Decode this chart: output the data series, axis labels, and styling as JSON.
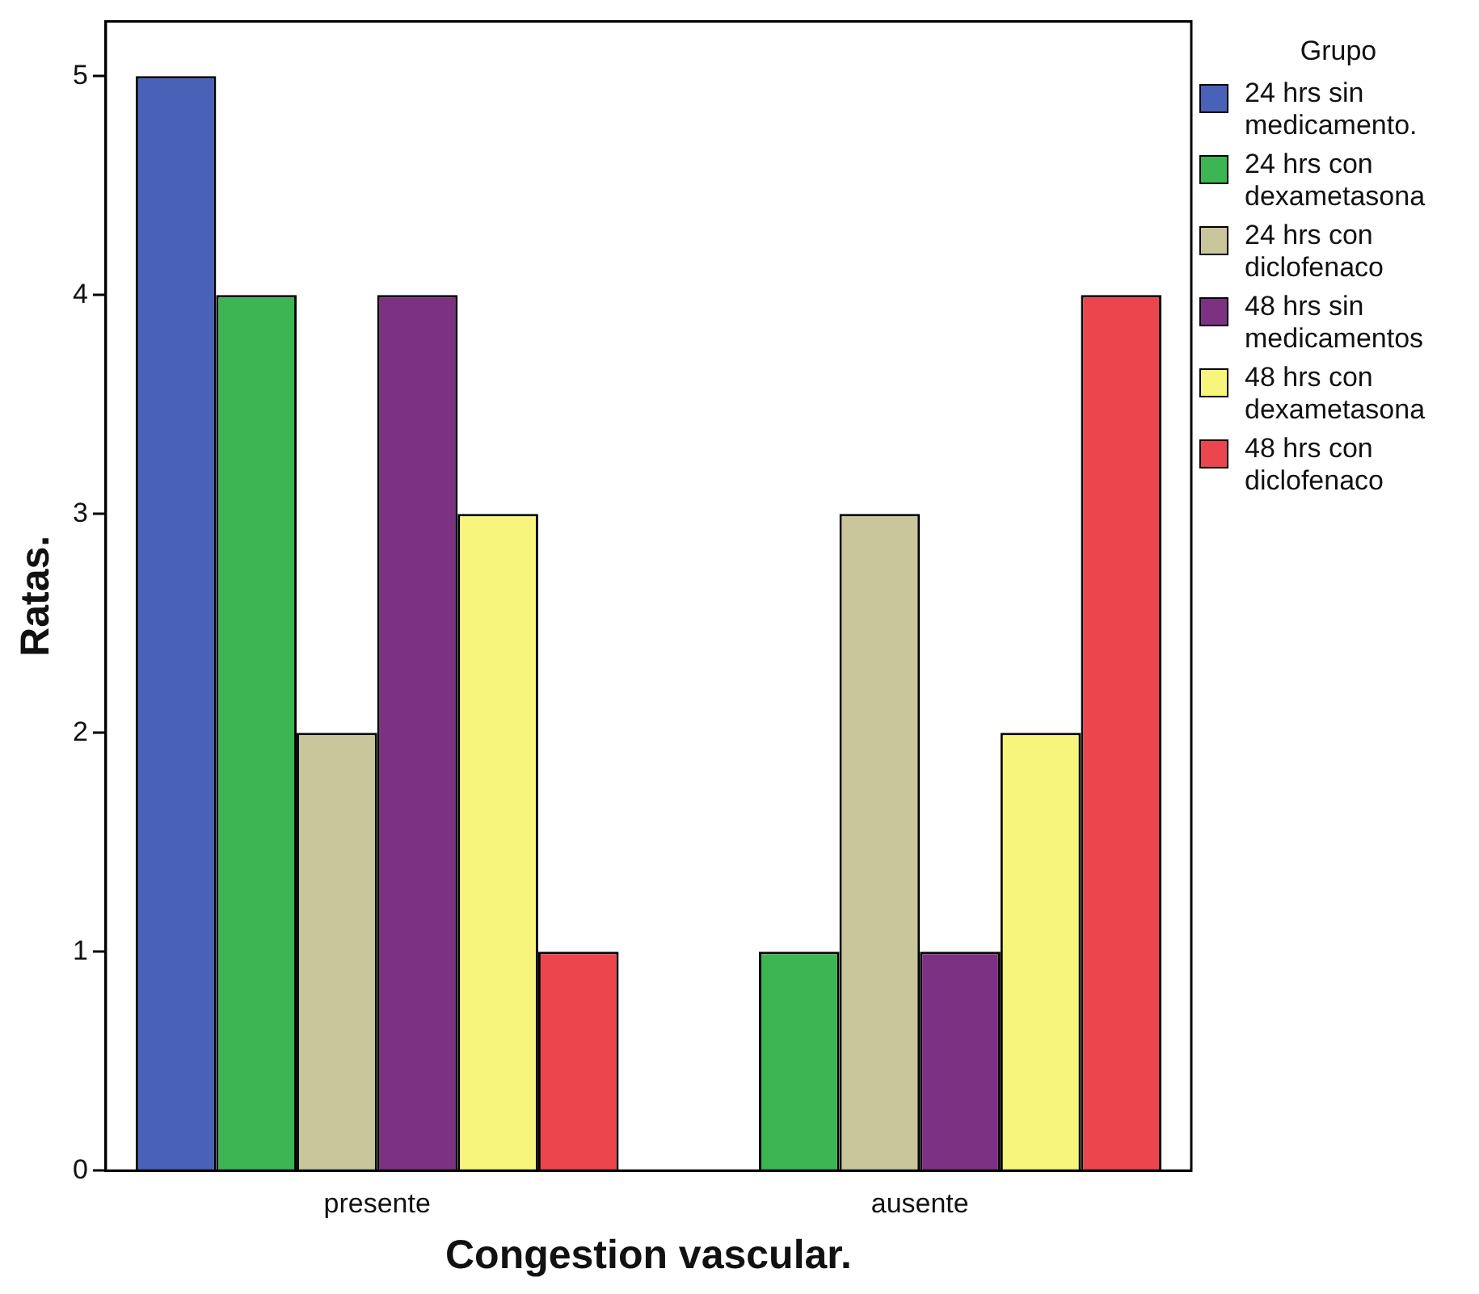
{
  "chart_data": {
    "type": "bar",
    "xlabel": "Congestion vascular.",
    "ylabel": "Ratas.",
    "legend_title": "Grupo",
    "legend": "top right",
    "grid": false,
    "categories": [
      "presente",
      "ausente"
    ],
    "ylim": [
      0,
      5.25
    ],
    "yticks": [
      0,
      1,
      2,
      3,
      4,
      5
    ],
    "series": [
      {
        "name": "24 hrs sin medicamento.",
        "color": "#4a61b8",
        "values": [
          5,
          0
        ]
      },
      {
        "name": "24 hrs con dexametasona",
        "color": "#3cb553",
        "values": [
          4,
          1
        ]
      },
      {
        "name": "24 hrs con diclofenaco",
        "color": "#c9c69c",
        "values": [
          2,
          3
        ]
      },
      {
        "name": "48 hrs sin medicamentos",
        "color": "#7d3182",
        "values": [
          4,
          1
        ]
      },
      {
        "name": "48 hrs con dexametasona",
        "color": "#f8f57c",
        "values": [
          3,
          2
        ]
      },
      {
        "name": "48 hrs con diclofenaco",
        "color": "#eb454d",
        "values": [
          1,
          4
        ]
      }
    ]
  }
}
